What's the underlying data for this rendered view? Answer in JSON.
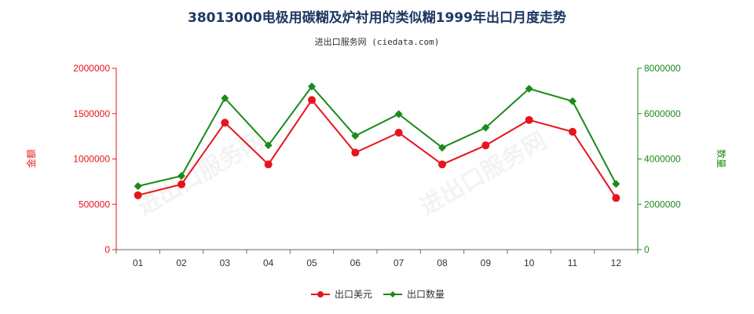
{
  "chart_data": {
    "type": "line",
    "title": "38013000电极用碳糊及炉衬用的类似糊1999年出口月度走势",
    "subtitle": "进出口服务网 (ciedata.com)",
    "watermark": "进出口服务网",
    "categories": [
      "01",
      "02",
      "03",
      "04",
      "05",
      "06",
      "07",
      "08",
      "09",
      "10",
      "11",
      "12"
    ],
    "y_left": {
      "label": "金额",
      "ylim": [
        0,
        2000000
      ],
      "ticks": [
        "0",
        "500000",
        "1000000",
        "1500000",
        "2000000"
      ]
    },
    "y_right": {
      "label": "数量",
      "ylim": [
        0,
        8000000
      ],
      "ticks": [
        "0",
        "2000000",
        "4000000",
        "6000000",
        "8000000"
      ]
    },
    "series": [
      {
        "name": "出口美元",
        "axis": "left",
        "color": "#e8141b",
        "marker": "circle",
        "values": [
          600000,
          720000,
          1400000,
          940000,
          1650000,
          1070000,
          1290000,
          940000,
          1150000,
          1430000,
          1300000,
          570000
        ]
      },
      {
        "name": "出口数量",
        "axis": "right",
        "color": "#1a8a1a",
        "marker": "diamond",
        "values": [
          2800000,
          3250000,
          6680000,
          4600000,
          7200000,
          5020000,
          5980000,
          4500000,
          5380000,
          7100000,
          6550000,
          2900000
        ]
      }
    ],
    "legend": "bottom-center",
    "grid": false
  }
}
